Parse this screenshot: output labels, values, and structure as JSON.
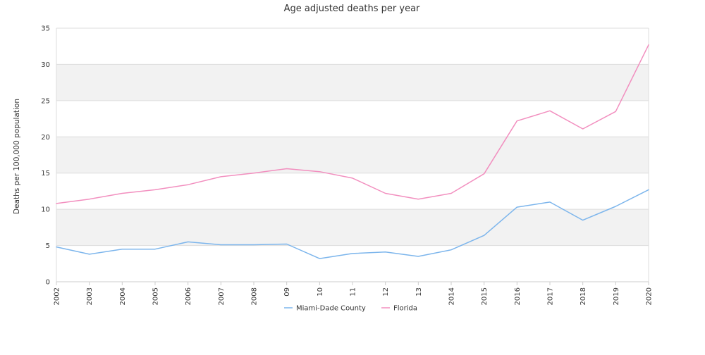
{
  "chart_data": {
    "type": "line",
    "title": "Age adjusted deaths per year",
    "ylabel": "Deaths per 100,000 population",
    "xlabel": "",
    "categories": [
      "2002",
      "2003",
      "2004",
      "2005",
      "2006",
      "2007",
      "2008",
      "09",
      "10",
      "11",
      "12",
      "13",
      "2014",
      "2015",
      "2016",
      "2017",
      "2018",
      "2019",
      "2020"
    ],
    "ylim": [
      0,
      35
    ],
    "yticks": [
      0,
      5,
      10,
      15,
      20,
      25,
      30,
      35
    ],
    "grid": "alternating horizontal bands",
    "legend_position": "bottom",
    "series": [
      {
        "name": "Miami-Dade County",
        "color": "#7cb5ec",
        "values": [
          4.8,
          3.8,
          4.5,
          4.5,
          5.5,
          5.1,
          5.1,
          5.2,
          3.2,
          3.9,
          4.1,
          3.5,
          4.4,
          6.4,
          10.3,
          11.0,
          8.5,
          10.4,
          12.7
        ]
      },
      {
        "name": "Florida",
        "color": "#f28fbf",
        "values": [
          10.8,
          11.4,
          12.2,
          12.7,
          13.4,
          14.5,
          15.0,
          15.6,
          15.2,
          14.3,
          12.2,
          11.4,
          12.2,
          14.9,
          22.2,
          23.6,
          21.1,
          23.5,
          32.7
        ]
      }
    ]
  }
}
